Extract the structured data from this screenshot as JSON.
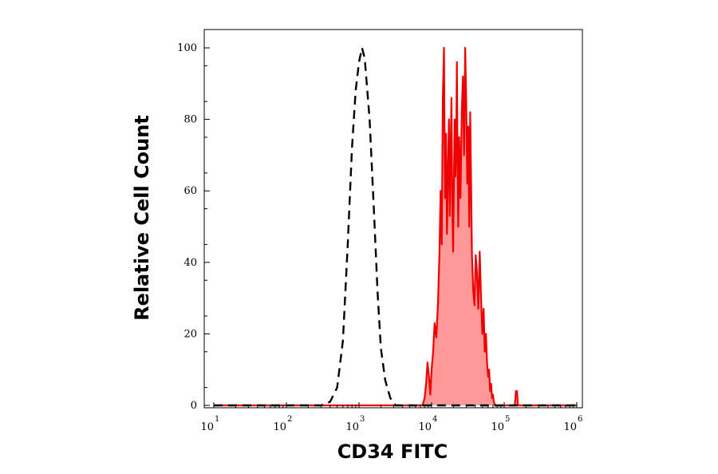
{
  "chart_data": {
    "type": "area",
    "xlabel": "CD34 FITC",
    "ylabel": "Relative Cell Count",
    "x_scale": "log",
    "xlim": [
      10,
      1000000
    ],
    "ylim": [
      0,
      100
    ],
    "grid": false,
    "x_ticks": [
      {
        "value": 10,
        "base": "10",
        "exp": "1"
      },
      {
        "value": 100,
        "base": "10",
        "exp": "2"
      },
      {
        "value": 1000,
        "base": "10",
        "exp": "3"
      },
      {
        "value": 10000,
        "base": "10",
        "exp": "4"
      },
      {
        "value": 100000,
        "base": "10",
        "exp": "5"
      },
      {
        "value": 1000000,
        "base": "10",
        "exp": "6"
      }
    ],
    "y_ticks": [
      {
        "value": 0,
        "label": "0"
      },
      {
        "value": 20,
        "label": "20"
      },
      {
        "value": 40,
        "label": "40"
      },
      {
        "value": 60,
        "label": "60"
      },
      {
        "value": 80,
        "label": "80"
      },
      {
        "value": 100,
        "label": "100"
      }
    ],
    "colors": {
      "isotype_line": "#000000",
      "stained_line": "#ee0000",
      "stained_fill": "#ff9999"
    },
    "series": [
      {
        "style": "dashed",
        "points": [
          [
            10,
            0
          ],
          [
            300,
            0
          ],
          [
            400,
            1
          ],
          [
            500,
            5
          ],
          [
            600,
            18
          ],
          [
            700,
            45
          ],
          [
            800,
            72
          ],
          [
            900,
            88
          ],
          [
            1000,
            96
          ],
          [
            1100,
            100
          ],
          [
            1200,
            97
          ],
          [
            1400,
            80
          ],
          [
            1600,
            55
          ],
          [
            1800,
            32
          ],
          [
            2000,
            16
          ],
          [
            2300,
            7
          ],
          [
            2700,
            2
          ],
          [
            3200,
            0
          ],
          [
            1000000,
            0
          ]
        ]
      },
      {
        "style": "filled",
        "points": [
          [
            10,
            0
          ],
          [
            7500,
            0
          ],
          [
            8000,
            2
          ],
          [
            8400,
            6
          ],
          [
            8800,
            12
          ],
          [
            9200,
            8
          ],
          [
            9600,
            3
          ],
          [
            10000,
            10
          ],
          [
            10500,
            15
          ],
          [
            11000,
            23
          ],
          [
            11600,
            19
          ],
          [
            12200,
            28
          ],
          [
            12800,
            42
          ],
          [
            13300,
            60
          ],
          [
            13800,
            45
          ],
          [
            14300,
            86
          ],
          [
            14800,
            100
          ],
          [
            15300,
            58
          ],
          [
            15800,
            76
          ],
          [
            16300,
            48
          ],
          [
            16800,
            65
          ],
          [
            17300,
            80
          ],
          [
            17800,
            53
          ],
          [
            18300,
            72
          ],
          [
            18800,
            86
          ],
          [
            19300,
            55
          ],
          [
            19800,
            43
          ],
          [
            20300,
            63
          ],
          [
            20800,
            80
          ],
          [
            21300,
            64
          ],
          [
            21800,
            72
          ],
          [
            22300,
            96
          ],
          [
            22800,
            68
          ],
          [
            23300,
            50
          ],
          [
            24000,
            75
          ],
          [
            25000,
            58
          ],
          [
            26000,
            82
          ],
          [
            27000,
            92
          ],
          [
            28000,
            70
          ],
          [
            29000,
            100
          ],
          [
            30000,
            85
          ],
          [
            31000,
            62
          ],
          [
            32000,
            78
          ],
          [
            33000,
            50
          ],
          [
            34000,
            82
          ],
          [
            35000,
            62
          ],
          [
            36000,
            42
          ],
          [
            37500,
            32
          ],
          [
            39000,
            28
          ],
          [
            40500,
            42
          ],
          [
            42000,
            38
          ],
          [
            44000,
            27
          ],
          [
            46000,
            43
          ],
          [
            48000,
            30
          ],
          [
            50000,
            20
          ],
          [
            52000,
            27
          ],
          [
            54000,
            15
          ],
          [
            56000,
            20
          ],
          [
            58000,
            12
          ],
          [
            60000,
            8
          ],
          [
            62000,
            10
          ],
          [
            64000,
            4
          ],
          [
            66000,
            6
          ],
          [
            68000,
            2
          ],
          [
            70000,
            3
          ],
          [
            72000,
            1
          ],
          [
            75000,
            0
          ],
          [
            140000,
            0
          ],
          [
            145000,
            4
          ],
          [
            150000,
            4
          ],
          [
            155000,
            0
          ],
          [
            1000000,
            0
          ]
        ]
      }
    ]
  }
}
